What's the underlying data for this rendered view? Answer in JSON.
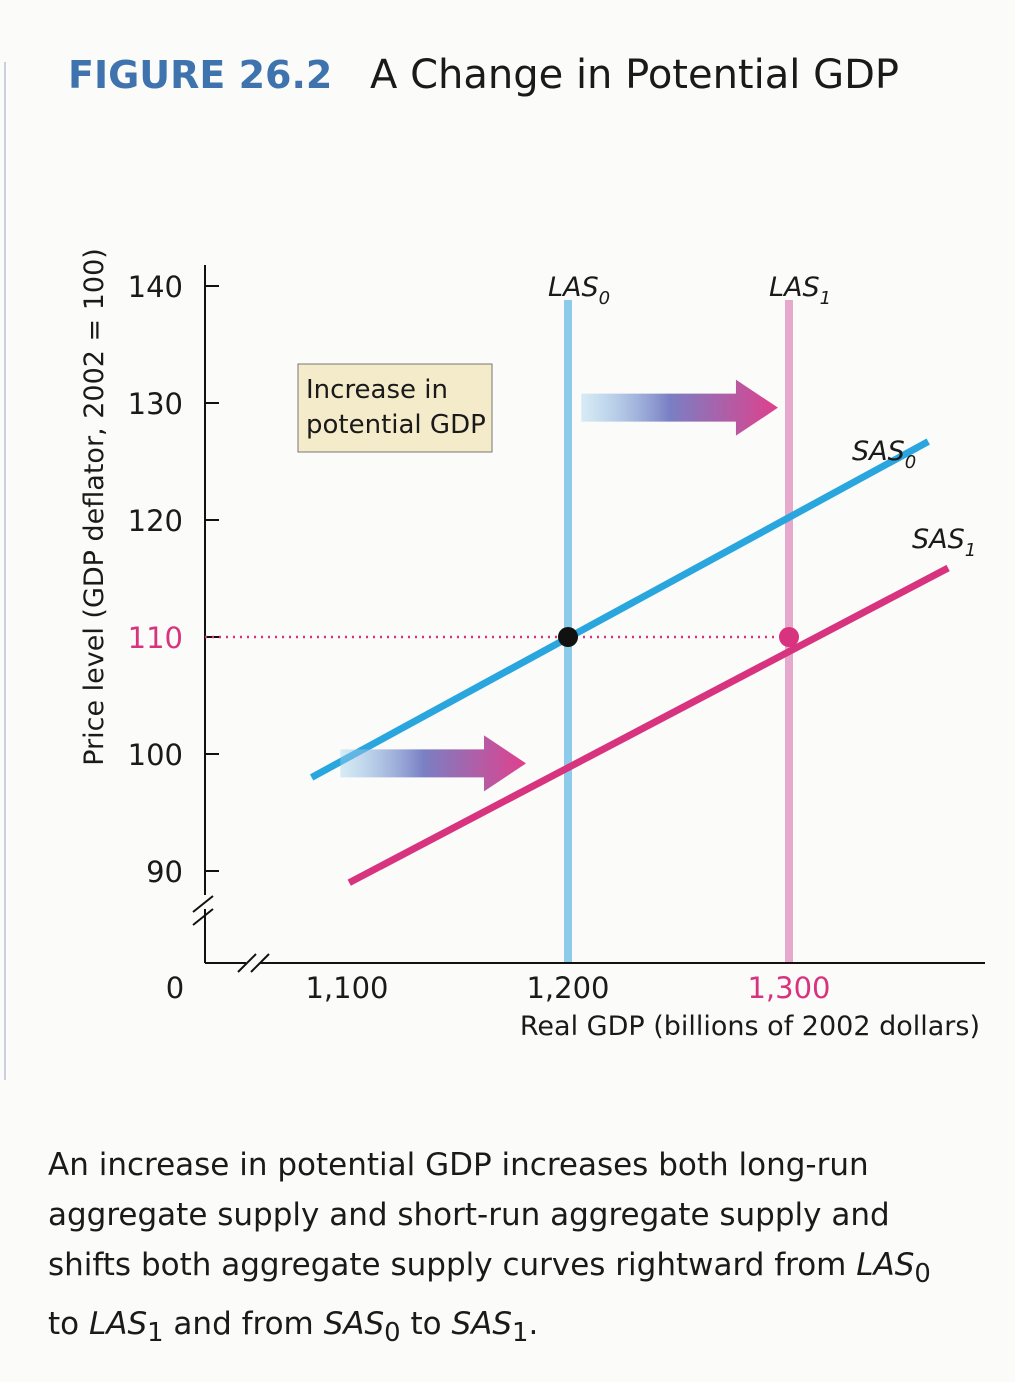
{
  "figure": {
    "number": "FIGURE 26.2",
    "title": "A Change in Potential GDP"
  },
  "chart_data": {
    "type": "line",
    "title": "A Change in Potential GDP",
    "xlabel": "Real GDP (billions of 2002 dollars)",
    "ylabel": "Price level (GDP deflator, 2002 = 100)",
    "xlim": [
      1000,
      1400
    ],
    "ylim": [
      80,
      140
    ],
    "x_ticks": [
      {
        "value": 1100,
        "label": "1,100"
      },
      {
        "value": 1200,
        "label": "1,200"
      },
      {
        "value": 1300,
        "label": "1,300",
        "highlight": true
      }
    ],
    "y_ticks": [
      {
        "value": 90,
        "label": "90"
      },
      {
        "value": 100,
        "label": "100"
      },
      {
        "value": 110,
        "label": "110",
        "highlight": true
      },
      {
        "value": 120,
        "label": "120"
      },
      {
        "value": 130,
        "label": "130"
      },
      {
        "value": 140,
        "label": "140"
      }
    ],
    "origin_label": "0",
    "axis_breaks": true,
    "series": [
      {
        "name": "LAS",
        "sub": "0",
        "kind": "vertical",
        "x": 1200,
        "color": "#8ccbe9"
      },
      {
        "name": "LAS",
        "sub": "1",
        "kind": "vertical",
        "x": 1300,
        "color": "#e6a9cb"
      },
      {
        "name": "SAS",
        "sub": "0",
        "kind": "line",
        "points": [
          [
            1084,
            98
          ],
          [
            1363,
            126.7
          ]
        ],
        "color": "#2aa6df"
      },
      {
        "name": "SAS",
        "sub": "1",
        "kind": "line",
        "points": [
          [
            1101,
            89
          ],
          [
            1372,
            115.9
          ]
        ],
        "color": "#d8337f"
      }
    ],
    "equilibria": [
      {
        "x": 1200,
        "y": 110,
        "color": "#111111"
      },
      {
        "x": 1300,
        "y": 110,
        "color": "#d8337f"
      }
    ],
    "reference_line": {
      "y": 110,
      "x_to": 1300,
      "color": "#d8337f"
    },
    "shift_arrows": [
      {
        "from": [
          1206,
          129.6
        ],
        "to": [
          1295,
          129.6
        ]
      },
      {
        "from": [
          1097,
          99.2
        ],
        "to": [
          1181,
          99.2
        ]
      }
    ],
    "annotation": {
      "line1": "Increase in",
      "line2": "potential GDP"
    }
  },
  "caption": {
    "text1": "An increase in potential GDP increases both long-run aggregate supply and short-run aggregate supply and shifts both aggregate supply curves rightward from ",
    "las0": "LAS",
    "las0_sub": "0",
    "to1": " to ",
    "las1": "LAS",
    "las1_sub": "1",
    "and": " and from ",
    "sas0": "SAS",
    "sas0_sub": "0",
    "to2": " to ",
    "sas1": "SAS",
    "sas1_sub": "1",
    "end": "."
  }
}
